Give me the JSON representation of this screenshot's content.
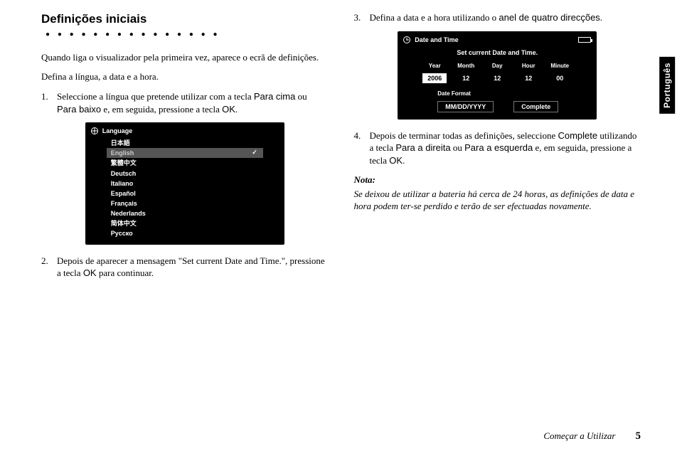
{
  "sideTab": "Português",
  "footer": {
    "label": "Começar a Utilizar",
    "page": "5"
  },
  "leftCol": {
    "heading": "Definições iniciais",
    "headingDots": "● ● ● ● ● ● ● ● ● ● ● ● ● ● ●",
    "p1": "Quando liga o visualizador pela primeira vez, aparece o ecrã de definições.",
    "p2": "Defina a língua, a data e a hora.",
    "step1_num": "1.",
    "step1_a": "Seleccione a língua que pretende utilizar com a tecla ",
    "step1_key1": "Para cima",
    "step1_b": " ou ",
    "step1_key2": "Para baixo",
    "step1_c": " e, em seguida, pressione a tecla ",
    "step1_key3": "OK",
    "step1_d": ".",
    "step2_num": "2.",
    "step2_a": "Depois de aparecer a mensagem \"Set current Date and Time.\", pressione a tecla ",
    "step2_key": "OK",
    "step2_b": " para continuar."
  },
  "rightCol": {
    "step3_num": "3.",
    "step3_a": "Defina a data e a hora utilizando o ",
    "step3_key": "anel de quatro direcções",
    "step3_b": ".",
    "step4_num": "4.",
    "step4_a": "Depois de terminar todas as definições, seleccione ",
    "step4_key1": "Complete",
    "step4_b": " utilizando a tecla ",
    "step4_key2": "Para a direita",
    "step4_c": " ou ",
    "step4_key3": "Para a esquerda",
    "step4_d": " e, em seguida, pressione a tecla ",
    "step4_key4": "OK",
    "step4_e": ".",
    "noteH": "Nota:",
    "noteB": "Se deixou de utilizar a bateria há cerca de 24 horas, as definições de data e hora podem ter-se perdido e terão de ser efectuadas novamente."
  },
  "langShot": {
    "title": "Language",
    "items": [
      "日本語",
      "English",
      "繁體中文",
      "Deutsch",
      "Italiano",
      "Español",
      "Français",
      "Nederlands",
      "简体中文",
      "Руccко"
    ],
    "selectedIndex": 1
  },
  "dtShot": {
    "title": "Date and Time",
    "sub": "Set current Date and Time.",
    "headers": [
      "Year",
      "Month",
      "Day",
      "Hour",
      "Minute"
    ],
    "values": [
      "2006",
      "12",
      "12",
      "12",
      "00"
    ],
    "selectedCol": 0,
    "fmtLabel": "Date Format",
    "fmtValue": "MM/DD/YYYY",
    "complete": "Complete"
  }
}
